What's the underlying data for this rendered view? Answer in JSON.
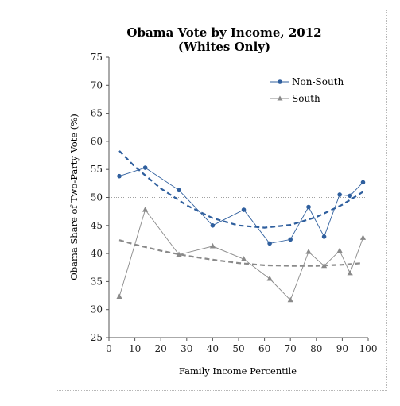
{
  "chart_data": {
    "type": "line",
    "title": "Obama Vote by Income, 2012",
    "subtitle": "(Whites Only)",
    "xlabel": "Family Income Percentile",
    "ylabel": "Obama Share of Two-Party Vote (%)",
    "xlim": [
      0,
      100
    ],
    "ylim": [
      25,
      75
    ],
    "xticks": [
      0,
      10,
      20,
      30,
      40,
      50,
      60,
      70,
      80,
      90,
      100
    ],
    "yticks": [
      25,
      30,
      35,
      40,
      45,
      50,
      55,
      60,
      65,
      70,
      75
    ],
    "reference_line": 50,
    "legend_position": "top-right",
    "series": [
      {
        "name": "Non-South",
        "marker": "circle",
        "color": "#2f5f9e",
        "x": [
          4,
          14,
          27,
          40,
          52,
          62,
          70,
          77,
          83,
          89,
          93,
          98
        ],
        "y": [
          53.8,
          55.3,
          51.3,
          45.0,
          47.8,
          41.8,
          42.5,
          48.3,
          43.0,
          50.5,
          50.3,
          52.7
        ],
        "trend": {
          "color": "#2f5f9e",
          "x": [
            4,
            10,
            20,
            30,
            40,
            50,
            60,
            70,
            80,
            90,
            98
          ],
          "y": [
            58.3,
            55.5,
            51.6,
            48.6,
            46.3,
            45.0,
            44.6,
            45.1,
            46.5,
            48.7,
            51.0
          ]
        }
      },
      {
        "name": "South",
        "marker": "triangle",
        "color": "#8a8a8a",
        "x": [
          4,
          14,
          27,
          40,
          52,
          62,
          70,
          77,
          83,
          89,
          93,
          98
        ],
        "y": [
          32.3,
          47.8,
          39.8,
          41.3,
          39.0,
          35.5,
          31.7,
          40.3,
          37.8,
          40.5,
          36.5,
          42.8
        ],
        "trend": {
          "color": "#8a8a8a",
          "x": [
            4,
            10,
            20,
            30,
            40,
            50,
            60,
            70,
            80,
            90,
            98
          ],
          "y": [
            42.4,
            41.6,
            40.5,
            39.6,
            38.9,
            38.3,
            37.9,
            37.8,
            37.8,
            38.0,
            38.3
          ]
        }
      }
    ]
  }
}
